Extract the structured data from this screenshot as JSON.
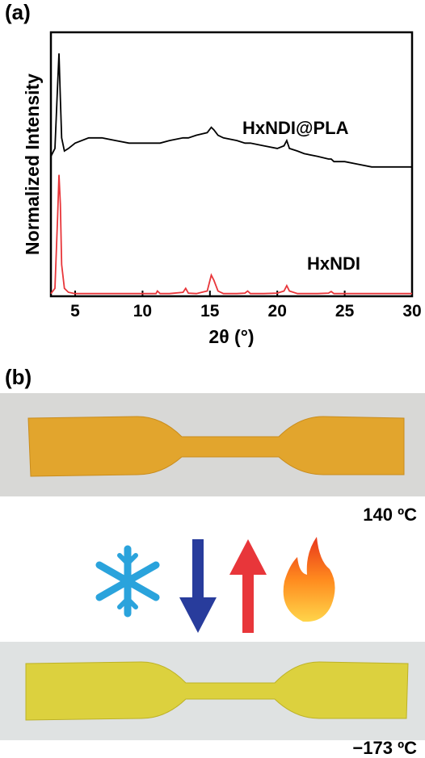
{
  "panel_a_label": "(a)",
  "panel_b_label": "(b)",
  "chart_data": {
    "type": "line",
    "xlabel": "2θ (°)",
    "ylabel": "Normalized Intensity",
    "x": [
      3.2,
      3.5,
      3.7,
      3.8,
      3.9,
      4.0,
      4.2,
      4.5,
      5,
      6,
      7,
      8,
      9,
      10,
      11,
      11.1,
      11.3,
      12,
      13,
      13.2,
      13.4,
      14,
      14.8,
      15.1,
      15.3,
      15.6,
      16,
      17,
      17.6,
      17.8,
      18,
      19,
      20,
      20.5,
      20.7,
      20.9,
      21.5,
      22,
      23,
      23.8,
      24,
      24.2,
      25,
      26,
      27,
      28,
      29,
      30
    ],
    "series": [
      {
        "name": "HxNDI@PLA",
        "color": "#000000",
        "values": [
          0.53,
          0.56,
          0.8,
          0.92,
          0.75,
          0.6,
          0.55,
          0.56,
          0.58,
          0.6,
          0.6,
          0.59,
          0.58,
          0.58,
          0.58,
          0.58,
          0.58,
          0.59,
          0.6,
          0.6,
          0.6,
          0.61,
          0.62,
          0.64,
          0.63,
          0.61,
          0.6,
          0.59,
          0.58,
          0.58,
          0.58,
          0.57,
          0.56,
          0.57,
          0.59,
          0.56,
          0.55,
          0.54,
          0.53,
          0.52,
          0.52,
          0.51,
          0.51,
          0.5,
          0.49,
          0.49,
          0.49,
          0.49
        ]
      },
      {
        "name": "HxNDI",
        "color": "#e8363a",
        "values": [
          0.01,
          0.03,
          0.3,
          0.46,
          0.35,
          0.12,
          0.03,
          0.015,
          0.01,
          0.01,
          0.01,
          0.01,
          0.01,
          0.01,
          0.01,
          0.02,
          0.01,
          0.01,
          0.015,
          0.03,
          0.012,
          0.01,
          0.02,
          0.08,
          0.06,
          0.02,
          0.01,
          0.01,
          0.012,
          0.02,
          0.01,
          0.01,
          0.012,
          0.02,
          0.04,
          0.02,
          0.01,
          0.01,
          0.01,
          0.012,
          0.018,
          0.01,
          0.01,
          0.01,
          0.01,
          0.01,
          0.01,
          0.01
        ]
      }
    ],
    "xlim": [
      3.2,
      30
    ],
    "xticks": [
      5,
      10,
      15,
      20,
      25,
      30
    ],
    "ylim": [
      0,
      1
    ]
  },
  "photo_top_label": "140 ºC",
  "photo_bottom_label": "−173 ºC"
}
